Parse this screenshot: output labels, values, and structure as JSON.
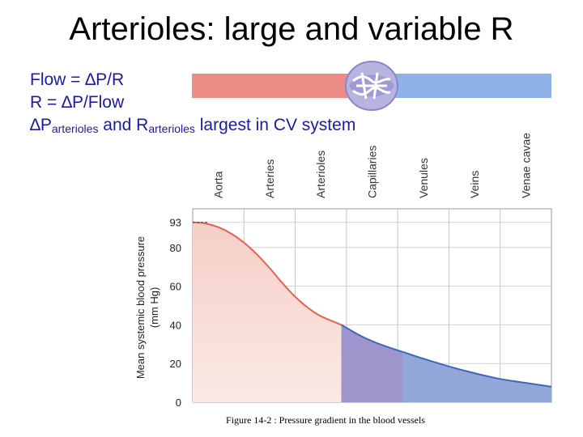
{
  "slide": {
    "title": "Arterioles: large and variable R",
    "equations": {
      "flow_prefix": "Flow = ",
      "flow_expr": "∆P/R",
      "r_prefix": "R = ",
      "r_expr": "∆P/Flow",
      "line3_delta_p": "∆P",
      "line3_sub1": "arterioles",
      "line3_and": " and R",
      "line3_sub2": "arterioles",
      "line3_rest": " largest in CV system"
    },
    "caption": "Figure 14-2 : Pressure gradient in the blood vessels"
  },
  "colors": {
    "equation_text": "#1a1aa8",
    "arterial_fill": "#f2c6bf",
    "arterial_line": "#e3644f",
    "capillary_fill": "#9e95cd",
    "venous_fill": "#93a8d8",
    "venous_line": "#3f67b8"
  },
  "vessel_icon": "blood-vessel-capillary-bed-icon",
  "chart_data": {
    "type": "area",
    "ylabel": "Mean systemic blood pressure",
    "ylabel_unit": "(mm Hg)",
    "yticks": [
      0,
      20,
      40,
      60,
      80,
      93
    ],
    "ylim": [
      0,
      100
    ],
    "grid": true,
    "categories": [
      "Aorta",
      "Arteries",
      "Arterioles",
      "Capillaries",
      "Venules",
      "Veins",
      "Venae cavae"
    ],
    "series": [
      {
        "segment": "arterial",
        "x": [
          0,
          0.25,
          0.5,
          0.75,
          1.0,
          1.25,
          1.5,
          1.75,
          2.0,
          2.25,
          2.5,
          2.9
        ],
        "y": [
          93,
          92.4,
          90.5,
          87.2,
          82.5,
          76.5,
          69.4,
          61.6,
          54.5,
          48.8,
          44.5,
          40
        ]
      },
      {
        "segment": "capillary",
        "x": [
          2.9,
          3.3,
          3.7,
          4.1
        ],
        "y": [
          40,
          34,
          29.5,
          26
        ]
      },
      {
        "segment": "venous",
        "x": [
          4.1,
          4.5,
          5.0,
          5.5,
          6.0,
          6.5,
          7.0
        ],
        "y": [
          26,
          22.5,
          18.5,
          15,
          12,
          10,
          8
        ]
      }
    ]
  }
}
